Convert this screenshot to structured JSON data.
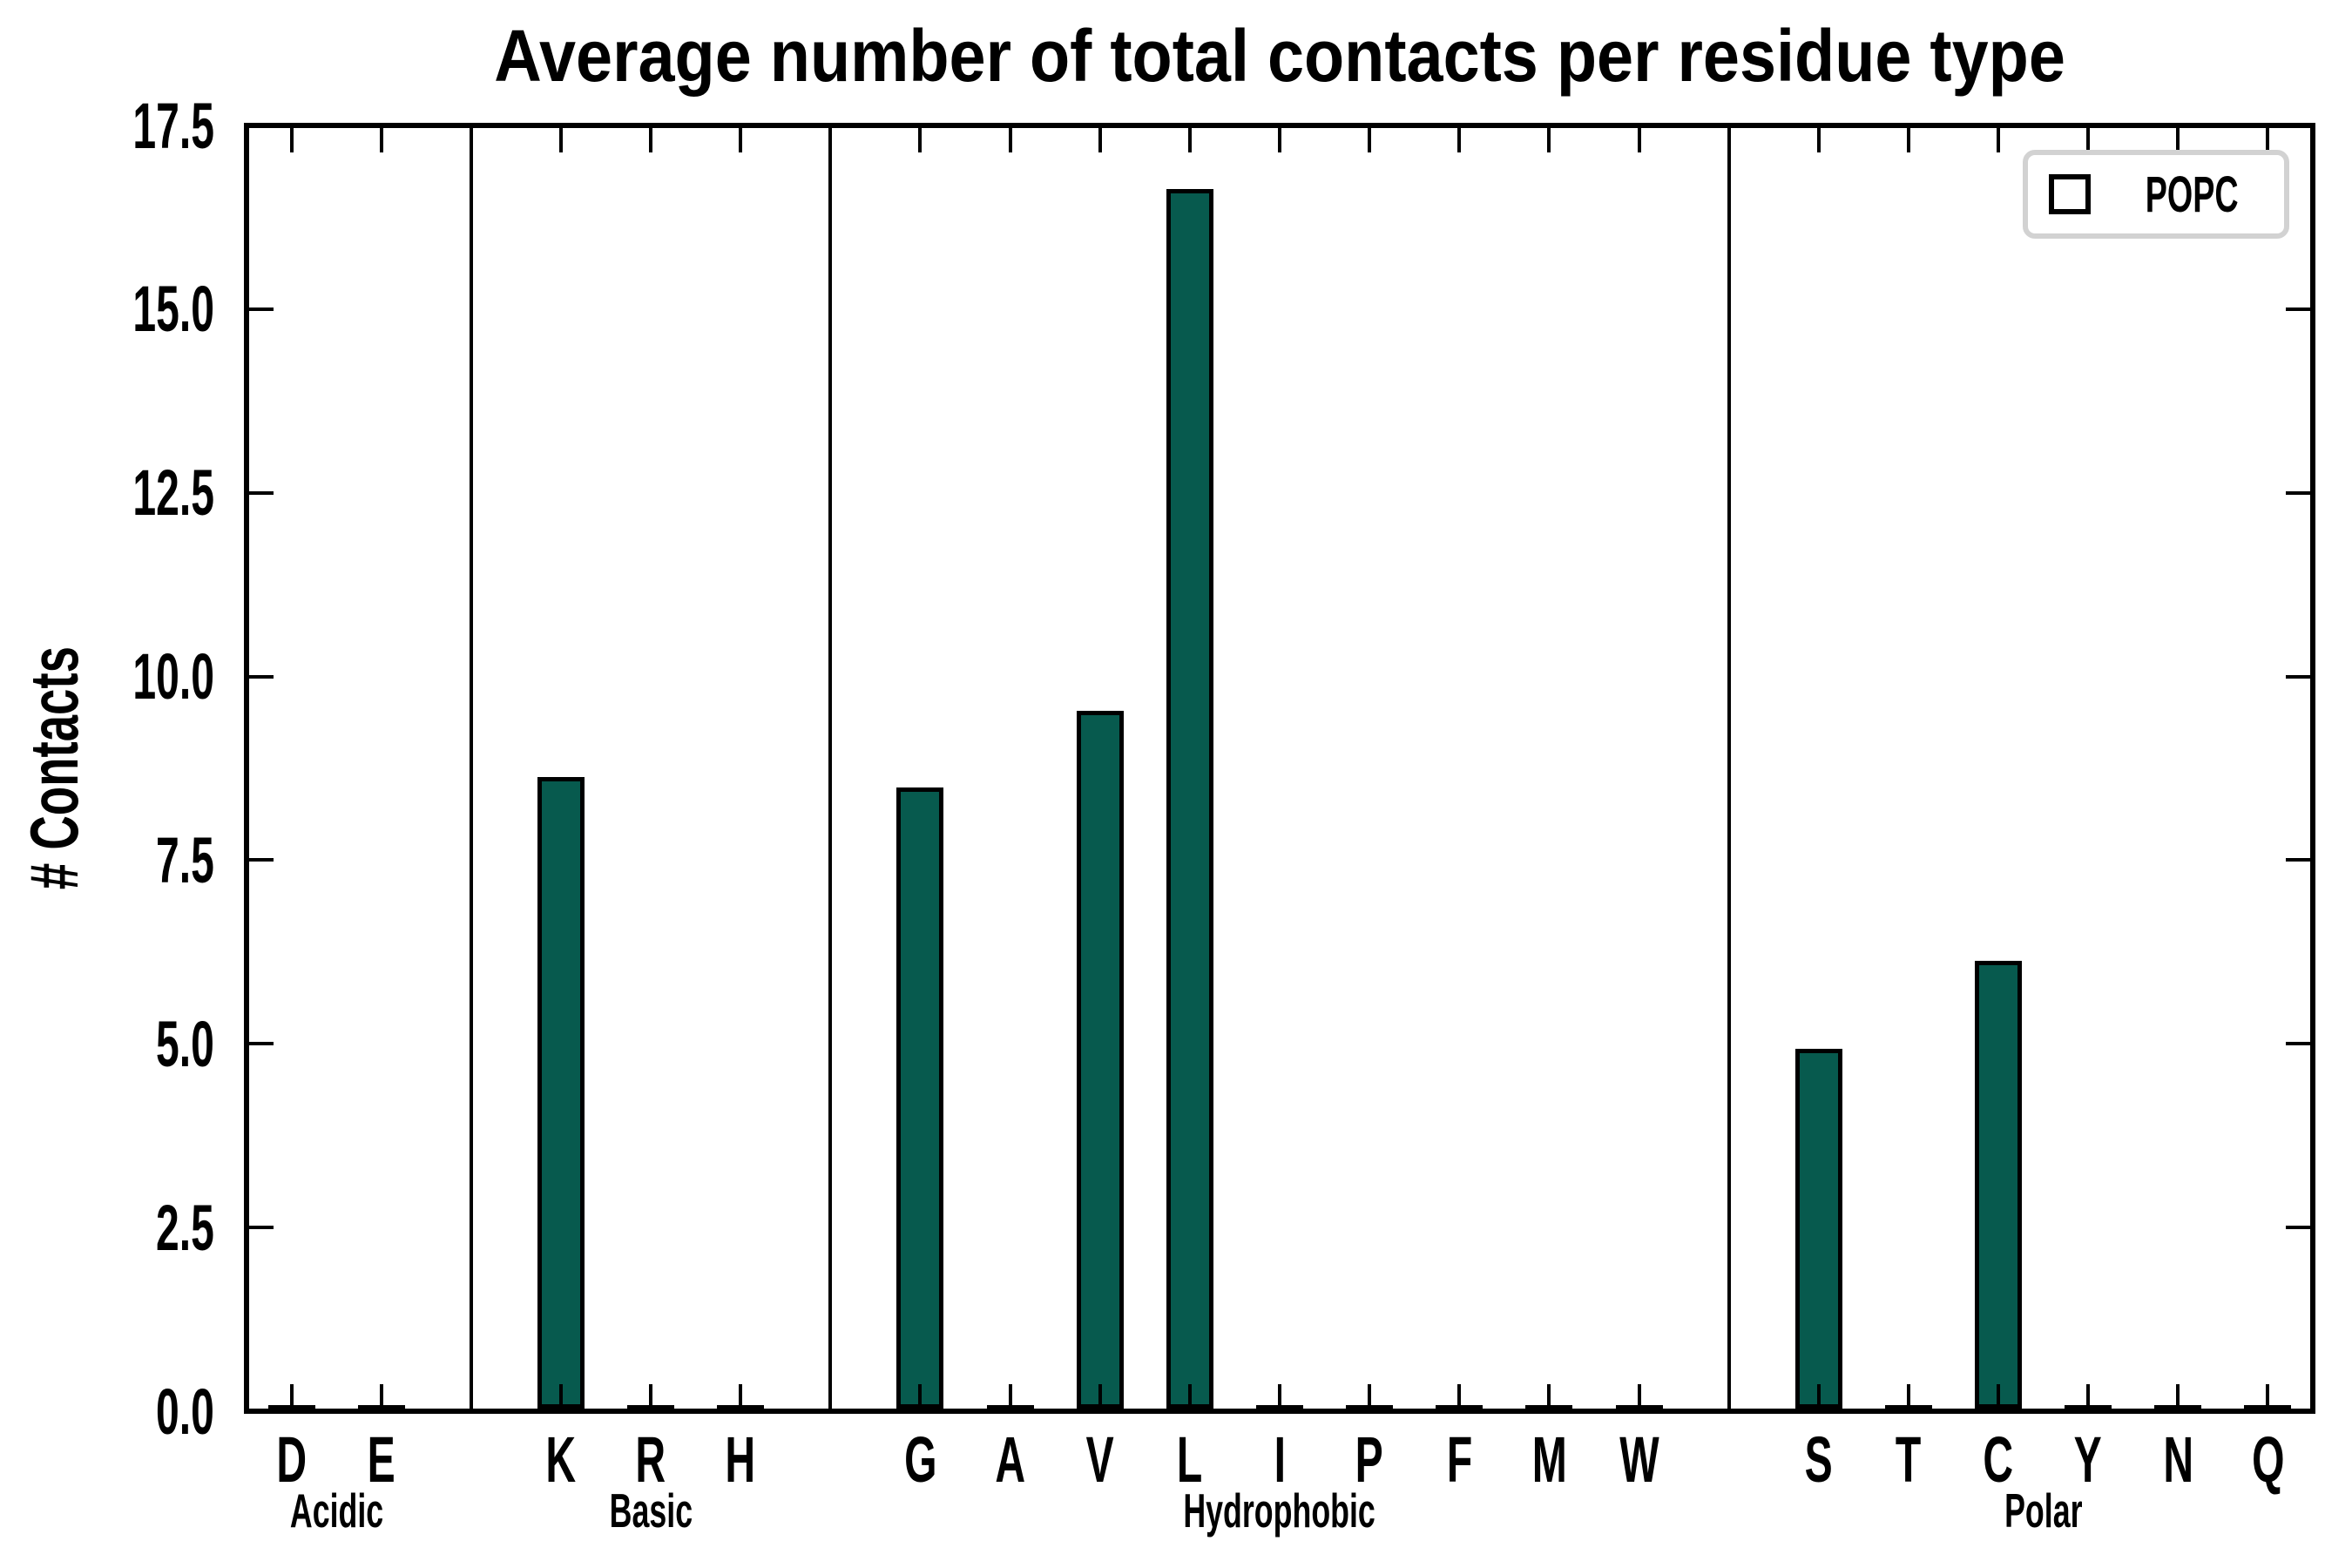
{
  "title": "Average number of total contacts per residue type",
  "ylabel": "# Contacts",
  "legend": {
    "label": "POPC",
    "position": "upper right"
  },
  "colors": {
    "bar_fill": "#075a4e",
    "bar_edge": "#000000",
    "axis": "#000000",
    "legend_border": "#d2d2d2",
    "background": "#ffffff",
    "text": "#000000"
  },
  "chart_data": {
    "type": "bar",
    "title": "Average number of total contacts per residue type",
    "xlabel": "",
    "ylabel": "# Contacts",
    "ylim": [
      0,
      17.5
    ],
    "yticks": [
      "0.0",
      "2.5",
      "5.0",
      "7.5",
      "10.0",
      "12.5",
      "15.0",
      "17.5"
    ],
    "grid": false,
    "legend_position": "upper right",
    "series": [
      {
        "name": "POPC",
        "color": "#075a4e"
      }
    ],
    "groups": [
      {
        "label": "Acidic",
        "categories": [
          "D",
          "E"
        ],
        "values": [
          0.05,
          0.05
        ]
      },
      {
        "label": "Basic",
        "categories": [
          "K",
          "R",
          "H"
        ],
        "values": [
          8.6,
          0.05,
          0.05
        ]
      },
      {
        "label": "Hydrophobic",
        "categories": [
          "G",
          "A",
          "V",
          "L",
          "I",
          "P",
          "F",
          "M",
          "W"
        ],
        "values": [
          8.45,
          0.05,
          9.5,
          16.6,
          0.05,
          0.05,
          0.05,
          0.05,
          0.05
        ]
      },
      {
        "label": "Polar",
        "categories": [
          "S",
          "T",
          "C",
          "Y",
          "N",
          "Q"
        ],
        "values": [
          4.9,
          0.05,
          6.1,
          0.05,
          0.05,
          0.05
        ]
      }
    ]
  }
}
